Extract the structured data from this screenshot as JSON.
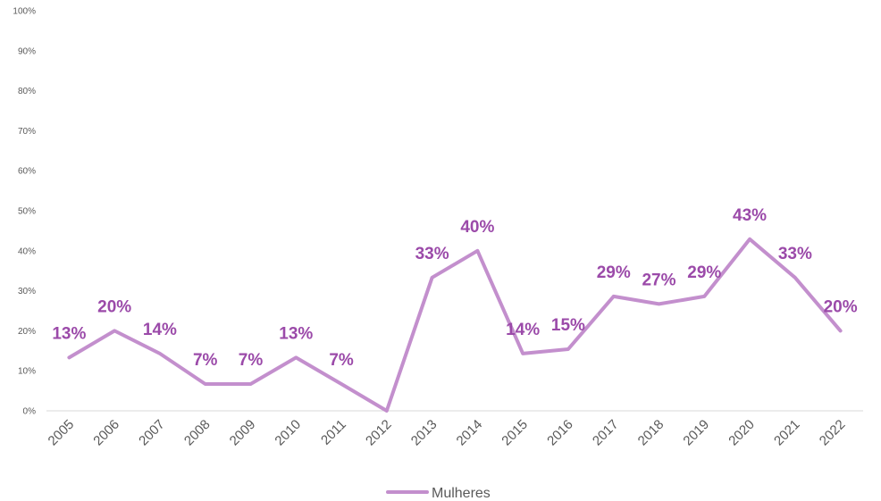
{
  "chart_data": {
    "type": "line",
    "title": "",
    "xlabel": "",
    "ylabel": "",
    "ylim": [
      0,
      100
    ],
    "y_tick_labels": [
      "0%",
      "10%",
      "20%",
      "30%",
      "40%",
      "50%",
      "60%",
      "70%",
      "80%",
      "90%",
      "100%"
    ],
    "categories": [
      "2005",
      "2006",
      "2007",
      "2008",
      "2009",
      "2010",
      "2011",
      "2012",
      "2013",
      "2014",
      "2015",
      "2016",
      "2017",
      "2018",
      "2019",
      "2020",
      "2021",
      "2022"
    ],
    "series": [
      {
        "name": "Mulheres",
        "color": "#c38fcd",
        "label_color": "#9b4aa9",
        "values": [
          13.3,
          20,
          14.3,
          6.7,
          6.7,
          13.3,
          6.7,
          0,
          33.3,
          40,
          14.3,
          15.4,
          28.6,
          26.7,
          28.6,
          42.9,
          33.3,
          20
        ],
        "data_labels": [
          "13%",
          "20%",
          "14%",
          "7%",
          "7%",
          "13%",
          "7%",
          "",
          "33%",
          "40%",
          "14%",
          "15%",
          "29%",
          "27%",
          "29%",
          "43%",
          "33%",
          "20%"
        ]
      }
    ],
    "grid": false,
    "legend_position": "bottom"
  }
}
